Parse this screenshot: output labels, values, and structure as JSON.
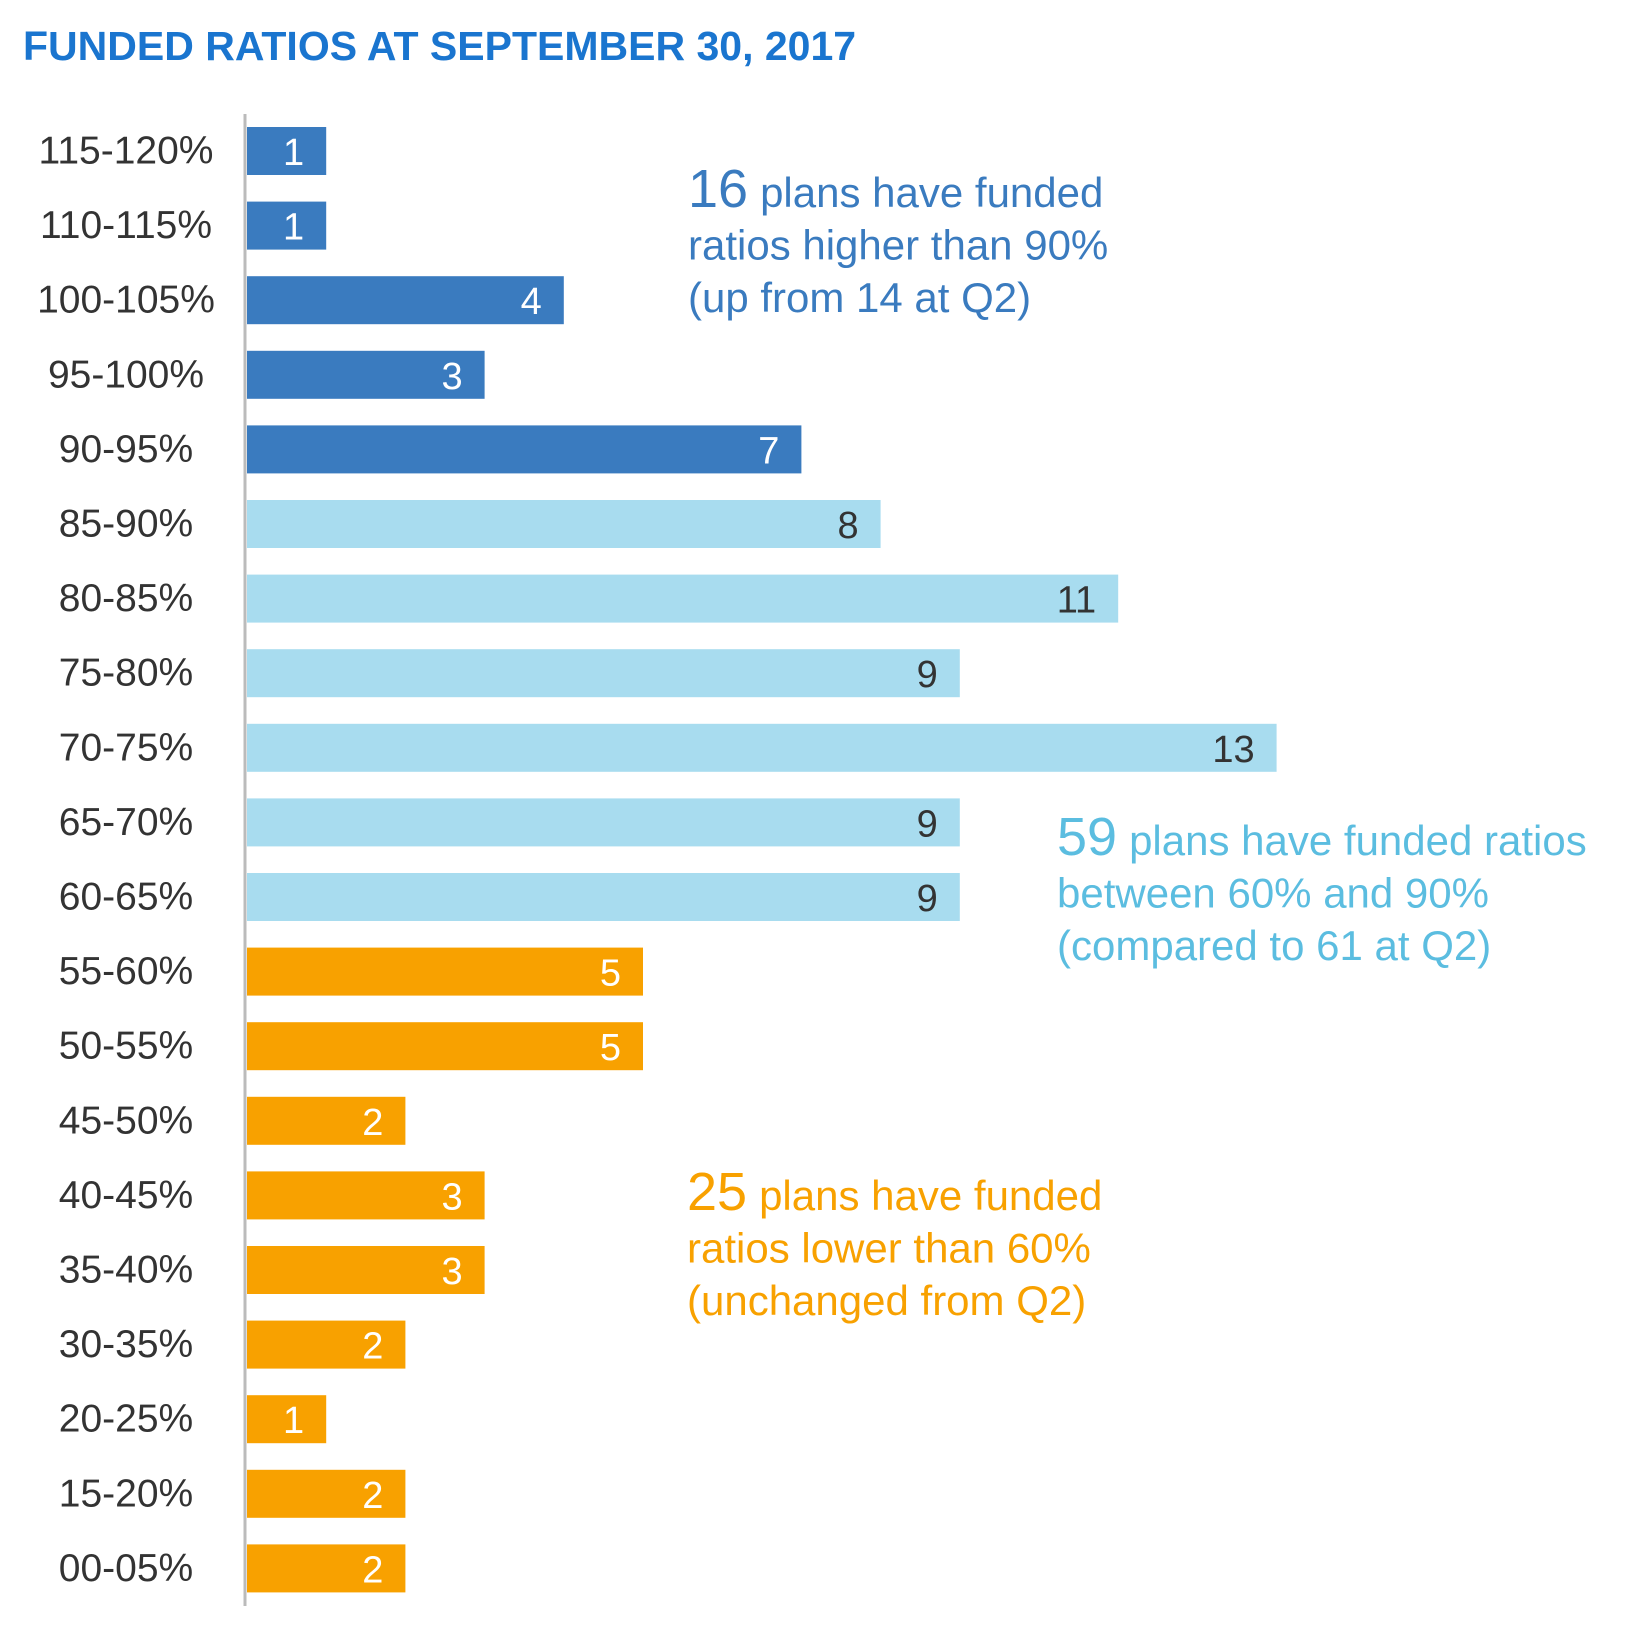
{
  "chart_data": {
    "type": "bar",
    "orientation": "horizontal",
    "title": "FUNDED RATIOS AT SEPTEMBER 30, 2017",
    "categories": [
      "115-120%",
      "110-115%",
      "100-105%",
      "95-100%",
      "90-95%",
      "85-90%",
      "80-85%",
      "75-80%",
      "70-75%",
      "65-70%",
      "60-65%",
      "55-60%",
      "50-55%",
      "45-50%",
      "40-45%",
      "35-40%",
      "30-35%",
      "20-25%",
      "15-20%",
      "00-05%"
    ],
    "values": [
      1,
      1,
      4,
      3,
      7,
      8,
      11,
      9,
      13,
      9,
      9,
      5,
      5,
      2,
      3,
      3,
      2,
      1,
      2,
      2
    ],
    "colors": [
      "#3a7bbf",
      "#3a7bbf",
      "#3a7bbf",
      "#3a7bbf",
      "#3a7bbf",
      "#a8dcef",
      "#a8dcef",
      "#a8dcef",
      "#a8dcef",
      "#a8dcef",
      "#a8dcef",
      "#f8a100",
      "#f8a100",
      "#f8a100",
      "#f8a100",
      "#f8a100",
      "#f8a100",
      "#f8a100",
      "#f8a100",
      "#f8a100"
    ],
    "annotations": [
      {
        "number": 16,
        "lines": [
          "plans have funded",
          "ratios higher than 90%",
          "(up from 14 at Q2)"
        ],
        "color": "#3a7bbf"
      },
      {
        "number": 59,
        "lines": [
          "plans have funded ratios",
          "between 60% and 90%",
          "(compared to 61 at Q2)"
        ],
        "color": "#5bbde0"
      },
      {
        "number": 25,
        "lines": [
          "plans have funded",
          "ratios lower than 60%",
          "(unchanged from Q2)"
        ],
        "color": "#f8a100"
      }
    ]
  }
}
